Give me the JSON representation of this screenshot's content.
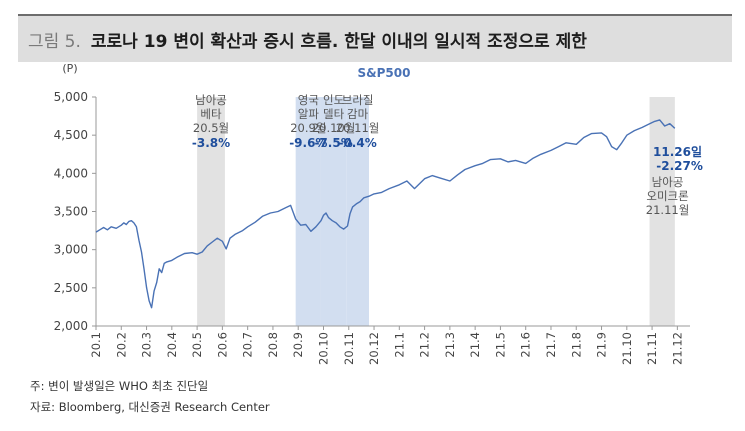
{
  "figure": {
    "number": "그림 5.",
    "title": "코로나 19 변이 확산과 증시 흐름. 한달 이내의 일시적 조정으로 제한"
  },
  "notes": {
    "note": "주: 변이 발생일은 WHO 최초 진단일",
    "source": "자료: Bloomberg, 대신증권 Research Center"
  },
  "colors": {
    "line": "#4a72b5",
    "band_blue": "#d2def0",
    "band_gray": "#e2e2e2",
    "pct": "#1f4e9c",
    "axis_text": "#444444"
  },
  "chart_data": {
    "type": "line",
    "title": "S&P500",
    "unit": "(P)",
    "ylim": [
      2000,
      5000
    ],
    "yticks": [
      "2,000",
      "2,500",
      "3,000",
      "3,500",
      "4,000",
      "4,500",
      "5,000"
    ],
    "xlim": [
      0,
      23.5
    ],
    "xticks": [
      "20.1",
      "20.2",
      "20.3",
      "20.4",
      "20.5",
      "20.6",
      "20.7",
      "20.8",
      "20.9",
      "20.10",
      "20.11",
      "20.12",
      "21.1",
      "21.2",
      "21.3",
      "21.4",
      "21.5",
      "21.6",
      "21.7",
      "21.8",
      "21.9",
      "21.10",
      "21.11",
      "21.12"
    ],
    "series": [
      {
        "name": "S&P500",
        "x": [
          0,
          0.15,
          0.3,
          0.45,
          0.6,
          0.8,
          1.0,
          1.1,
          1.2,
          1.3,
          1.4,
          1.5,
          1.6,
          1.7,
          1.8,
          1.9,
          2.0,
          2.1,
          2.2,
          2.3,
          2.4,
          2.5,
          2.6,
          2.7,
          2.8,
          3.0,
          3.2,
          3.5,
          3.8,
          4.0,
          4.2,
          4.4,
          4.6,
          4.8,
          5.0,
          5.15,
          5.3,
          5.5,
          5.8,
          6.0,
          6.3,
          6.6,
          6.9,
          7.2,
          7.5,
          7.7,
          7.9,
          8.1,
          8.3,
          8.5,
          8.7,
          8.9,
          9.0,
          9.1,
          9.2,
          9.35,
          9.5,
          9.65,
          9.8,
          9.95,
          10.05,
          10.15,
          10.3,
          10.45,
          10.6,
          10.8,
          11.0,
          11.3,
          11.6,
          12.0,
          12.3,
          12.6,
          13.0,
          13.3,
          13.6,
          14.0,
          14.3,
          14.6,
          15.0,
          15.3,
          15.6,
          16.0,
          16.3,
          16.6,
          17.0,
          17.3,
          17.6,
          18.0,
          18.3,
          18.6,
          19.0,
          19.3,
          19.6,
          20.0,
          20.2,
          20.4,
          20.6,
          20.8,
          21.0,
          21.3,
          21.6,
          21.9,
          22.1,
          22.3,
          22.5,
          22.7,
          22.9
        ],
        "y": [
          3230,
          3260,
          3290,
          3260,
          3300,
          3280,
          3320,
          3350,
          3330,
          3370,
          3380,
          3350,
          3300,
          3120,
          2970,
          2750,
          2500,
          2330,
          2240,
          2460,
          2570,
          2750,
          2700,
          2820,
          2840,
          2860,
          2900,
          2950,
          2960,
          2940,
          2970,
          3050,
          3100,
          3150,
          3110,
          3010,
          3150,
          3200,
          3250,
          3300,
          3360,
          3440,
          3480,
          3500,
          3550,
          3580,
          3400,
          3320,
          3330,
          3240,
          3300,
          3380,
          3450,
          3480,
          3420,
          3380,
          3350,
          3300,
          3270,
          3310,
          3470,
          3560,
          3600,
          3630,
          3680,
          3700,
          3730,
          3750,
          3800,
          3850,
          3900,
          3800,
          3930,
          3970,
          3940,
          3900,
          3980,
          4050,
          4100,
          4130,
          4180,
          4190,
          4150,
          4170,
          4130,
          4200,
          4250,
          4300,
          4350,
          4400,
          4380,
          4470,
          4520,
          4530,
          4480,
          4350,
          4310,
          4400,
          4500,
          4560,
          4600,
          4650,
          4680,
          4700,
          4620,
          4650,
          4590
        ]
      }
    ],
    "bands": [
      {
        "x0": 4.0,
        "x1": 5.1,
        "kind": "gray",
        "label_lines": [
          "남아공",
          "베타"
        ],
        "date": "20.5월",
        "pct": "-3.8%"
      },
      {
        "x0": 7.9,
        "x1": 8.9,
        "kind": "blue",
        "label_lines": [
          "영국",
          "알파"
        ],
        "date": "20.9월",
        "pct": "-9.6%"
      },
      {
        "x0": 8.9,
        "x1": 9.9,
        "kind": "blue",
        "label_lines": [
          "인도",
          "델타"
        ],
        "date": "20.10월",
        "pct": "-7.5%"
      },
      {
        "x0": 9.9,
        "x1": 10.8,
        "kind": "blue",
        "label_lines": [
          "브라질",
          "감마"
        ],
        "date": "20.11월",
        "pct": "-0.4%"
      },
      {
        "x0": 21.9,
        "x1": 22.9,
        "kind": "gray",
        "label_lines": [
          "남아공",
          "오미크론"
        ],
        "date": "21.11월",
        "pct": "-2.27%",
        "date_pct": "11.26일"
      }
    ]
  }
}
